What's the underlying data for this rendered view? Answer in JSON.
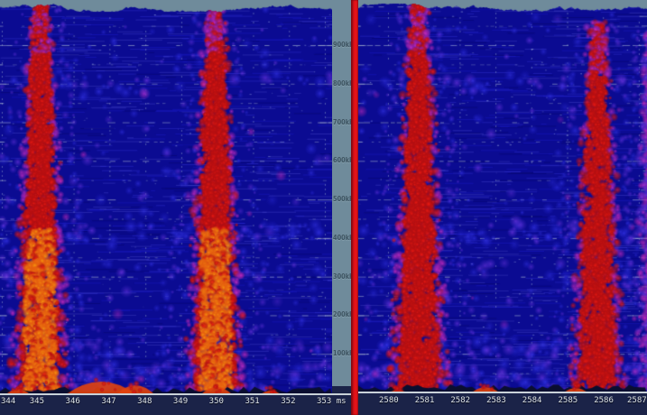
{
  "frequency_axis": {
    "unit": "kHz",
    "labels": [
      "900kHz",
      "800kHz",
      "700kHz",
      "600kHz",
      "500kHz",
      "400kHz",
      "300kHz",
      "200kHz",
      "100kHz"
    ]
  },
  "left_panel": {
    "time_ticks": [
      "344",
      "345",
      "346",
      "347",
      "348",
      "349",
      "350",
      "351",
      "352",
      "353"
    ],
    "unit": "ms"
  },
  "right_panel": {
    "time_ticks": [
      "2580",
      "2581",
      "2582",
      "2583",
      "2584",
      "2585",
      "2586",
      "2587"
    ]
  },
  "colors": {
    "background_gray": "#6f8b9b",
    "panel_blue": "#0b0b92",
    "divider_red": "#e41319",
    "axis_bar_navy": "#1b2348",
    "axis_line": "#c9d2d9",
    "hot_orange": "#f6960f",
    "signal_red": "#ef1a12",
    "signal_magenta": "#cf2cc0",
    "signal_purple": "#7a3ae8",
    "noise_blue": "#3838ee"
  },
  "chart_data": {
    "type": "heatmap",
    "subtype": "dual 3D waterfall spectrogram, time (ms) vs frequency (kHz), amplitude as color (blue=low, magenta/red=mid, orange=peak)",
    "y_axis": {
      "unit": "kHz",
      "tick_values_khz": [
        900,
        800,
        700,
        600,
        500,
        400,
        300,
        200,
        100
      ],
      "range_khz": [
        0,
        1000
      ],
      "grid": "dotted horizontal lines every 50 kHz, dotted vertical lines at each time tick"
    },
    "panels": [
      {
        "id": "left",
        "x_unit": "ms",
        "x_ticks": [
          344,
          345,
          346,
          347,
          348,
          349,
          350,
          351,
          352,
          353
        ],
        "x_range": [
          344,
          353.2
        ],
        "bursts": [
          {
            "center_time": 345.08,
            "start_time": 344.0,
            "end_time": 346.2,
            "freq_extent_khz": [
              0,
              1000
            ],
            "level": "high",
            "core": "orange",
            "reaches_top": true
          },
          {
            "center_time": 349.95,
            "start_time": 348.9,
            "end_time": 351.2,
            "freq_extent_khz": [
              0,
              1000
            ],
            "level": "high",
            "core": "orange",
            "reaches_top": true
          }
        ]
      },
      {
        "id": "right",
        "x_unit": "ms",
        "x_ticks": [
          2580,
          2581,
          2582,
          2583,
          2584,
          2585,
          2586,
          2587
        ],
        "x_range": [
          2579.2,
          2587.2
        ],
        "bursts": [
          {
            "center_time": 2580.85,
            "start_time": 2580.0,
            "end_time": 2581.8,
            "freq_extent_khz": [
              0,
              1000
            ],
            "level": "high",
            "core": "red",
            "reaches_top": true
          },
          {
            "center_time": 2585.85,
            "start_time": 2585.0,
            "end_time": 2586.9,
            "freq_extent_khz": [
              0,
              900
            ],
            "level": "medium",
            "core": "red",
            "reaches_top": false
          },
          {
            "center_time": 2587.4,
            "start_time": 2587.0,
            "end_time": 2587.6,
            "freq_extent_khz": [
              0,
              900
            ],
            "level": "low",
            "core": "magenta",
            "reaches_top": false
          }
        ]
      }
    ]
  }
}
